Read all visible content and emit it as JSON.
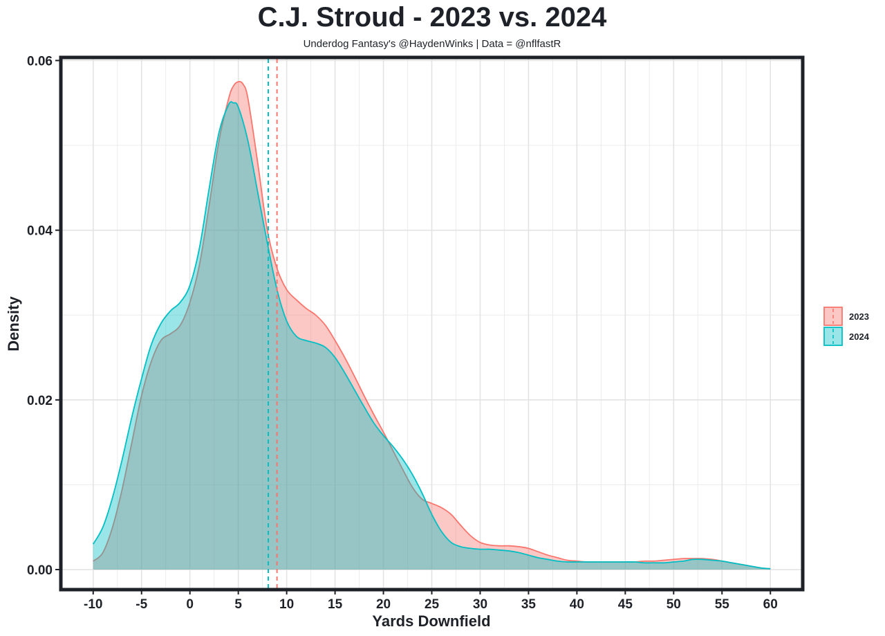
{
  "chart_data": {
    "type": "area",
    "title": "C.J. Stroud - 2023 vs. 2024",
    "subtitle": "Underdog Fantasy's @HaydenWinks | Data = @nflfastR",
    "xlabel": "Yards Downfield",
    "ylabel": "Density",
    "xlim": [
      -13.2,
      63.2
    ],
    "ylim": [
      -0.0022,
      0.0602
    ],
    "x_ticks": [
      -10,
      -5,
      0,
      5,
      10,
      15,
      20,
      25,
      30,
      35,
      40,
      45,
      50,
      55,
      60
    ],
    "y_ticks": [
      0,
      0.02,
      0.04,
      0.06
    ],
    "y_tick_labels": [
      "0.00",
      "0.02",
      "0.04",
      "0.06"
    ],
    "grid": true,
    "legend_position": "right",
    "series": [
      {
        "name": "2023",
        "color": "#f8766d",
        "fill": "#f8766d",
        "mean_line": 9.0,
        "points": [
          [
            -10,
            0.001
          ],
          [
            -9,
            0.002
          ],
          [
            -8,
            0.005
          ],
          [
            -7,
            0.0095
          ],
          [
            -6,
            0.015
          ],
          [
            -5,
            0.0205
          ],
          [
            -4,
            0.0245
          ],
          [
            -3,
            0.027
          ],
          [
            -2,
            0.0278
          ],
          [
            -1,
            0.0288
          ],
          [
            0,
            0.0315
          ],
          [
            1,
            0.036
          ],
          [
            2,
            0.043
          ],
          [
            3,
            0.0505
          ],
          [
            4,
            0.0555
          ],
          [
            4.5,
            0.057
          ],
          [
            5,
            0.0575
          ],
          [
            5.5,
            0.0572
          ],
          [
            6,
            0.0555
          ],
          [
            7,
            0.048
          ],
          [
            8,
            0.04
          ],
          [
            9,
            0.0355
          ],
          [
            10,
            0.033
          ],
          [
            11,
            0.0318
          ],
          [
            12,
            0.0308
          ],
          [
            13,
            0.03
          ],
          [
            14,
            0.0288
          ],
          [
            15,
            0.027
          ],
          [
            16,
            0.025
          ],
          [
            17,
            0.0228
          ],
          [
            18,
            0.0205
          ],
          [
            19,
            0.0183
          ],
          [
            20,
            0.0162
          ],
          [
            21,
            0.014
          ],
          [
            22,
            0.0118
          ],
          [
            23,
            0.0097
          ],
          [
            24,
            0.0083
          ],
          [
            25,
            0.0078
          ],
          [
            26,
            0.0073
          ],
          [
            27,
            0.0065
          ],
          [
            28,
            0.0052
          ],
          [
            29,
            0.004
          ],
          [
            30,
            0.0032
          ],
          [
            31,
            0.0029
          ],
          [
            32,
            0.0028
          ],
          [
            33,
            0.0028
          ],
          [
            34,
            0.0027
          ],
          [
            35,
            0.0025
          ],
          [
            36,
            0.0021
          ],
          [
            37,
            0.0017
          ],
          [
            38,
            0.0014
          ],
          [
            39,
            0.0011
          ],
          [
            40,
            0.001
          ],
          [
            41,
            0.0009
          ],
          [
            42,
            0.0009
          ],
          [
            43,
            0.0009
          ],
          [
            44,
            0.0009
          ],
          [
            45,
            0.0009
          ],
          [
            46,
            0.0009
          ],
          [
            47,
            0.001
          ],
          [
            48,
            0.001
          ],
          [
            49,
            0.0011
          ],
          [
            50,
            0.0012
          ],
          [
            51,
            0.0013
          ],
          [
            52,
            0.0013
          ],
          [
            53,
            0.0013
          ],
          [
            54,
            0.0012
          ],
          [
            55,
            0.001
          ],
          [
            56,
            0.0008
          ],
          [
            57,
            0.0006
          ],
          [
            58,
            0.0004
          ],
          [
            59,
            0.0002
          ],
          [
            60,
            0.0001
          ]
        ]
      },
      {
        "name": "2024",
        "color": "#00bfc4",
        "fill": "#00bfc4",
        "mean_line": 8.1,
        "points": [
          [
            -10,
            0.003
          ],
          [
            -9,
            0.005
          ],
          [
            -8,
            0.0085
          ],
          [
            -7,
            0.013
          ],
          [
            -6,
            0.018
          ],
          [
            -5,
            0.0225
          ],
          [
            -4,
            0.0265
          ],
          [
            -3,
            0.029
          ],
          [
            -2,
            0.0305
          ],
          [
            -1,
            0.0315
          ],
          [
            0,
            0.0335
          ],
          [
            1,
            0.038
          ],
          [
            2,
            0.045
          ],
          [
            3,
            0.0515
          ],
          [
            4,
            0.0548
          ],
          [
            4.5,
            0.055
          ],
          [
            5,
            0.0545
          ],
          [
            6,
            0.0505
          ],
          [
            7,
            0.0445
          ],
          [
            8,
            0.0385
          ],
          [
            9,
            0.033
          ],
          [
            10,
            0.0293
          ],
          [
            11,
            0.0275
          ],
          [
            12,
            0.027
          ],
          [
            13,
            0.0267
          ],
          [
            14,
            0.0262
          ],
          [
            15,
            0.025
          ],
          [
            16,
            0.0232
          ],
          [
            17,
            0.0212
          ],
          [
            18,
            0.0192
          ],
          [
            19,
            0.0173
          ],
          [
            20,
            0.0158
          ],
          [
            21,
            0.0145
          ],
          [
            22,
            0.013
          ],
          [
            23,
            0.0112
          ],
          [
            24,
            0.009
          ],
          [
            25,
            0.0065
          ],
          [
            26,
            0.0045
          ],
          [
            27,
            0.0032
          ],
          [
            28,
            0.0027
          ],
          [
            29,
            0.0025
          ],
          [
            30,
            0.0024
          ],
          [
            31,
            0.0024
          ],
          [
            32,
            0.0023
          ],
          [
            33,
            0.0022
          ],
          [
            34,
            0.002
          ],
          [
            35,
            0.0017
          ],
          [
            36,
            0.0014
          ],
          [
            37,
            0.0012
          ],
          [
            38,
            0.001
          ],
          [
            39,
            0.0009
          ],
          [
            40,
            0.0009
          ],
          [
            41,
            0.0009
          ],
          [
            42,
            0.0009
          ],
          [
            43,
            0.0009
          ],
          [
            44,
            0.0009
          ],
          [
            45,
            0.0009
          ],
          [
            46,
            0.0009
          ],
          [
            47,
            0.0008
          ],
          [
            48,
            0.0008
          ],
          [
            49,
            0.0008
          ],
          [
            50,
            0.0009
          ],
          [
            51,
            0.001
          ],
          [
            52,
            0.0012
          ],
          [
            53,
            0.0012
          ],
          [
            54,
            0.0011
          ],
          [
            55,
            0.001
          ],
          [
            56,
            0.0008
          ],
          [
            57,
            0.0006
          ],
          [
            58,
            0.0004
          ],
          [
            59,
            0.0002
          ],
          [
            60,
            0.0001
          ]
        ]
      }
    ]
  }
}
